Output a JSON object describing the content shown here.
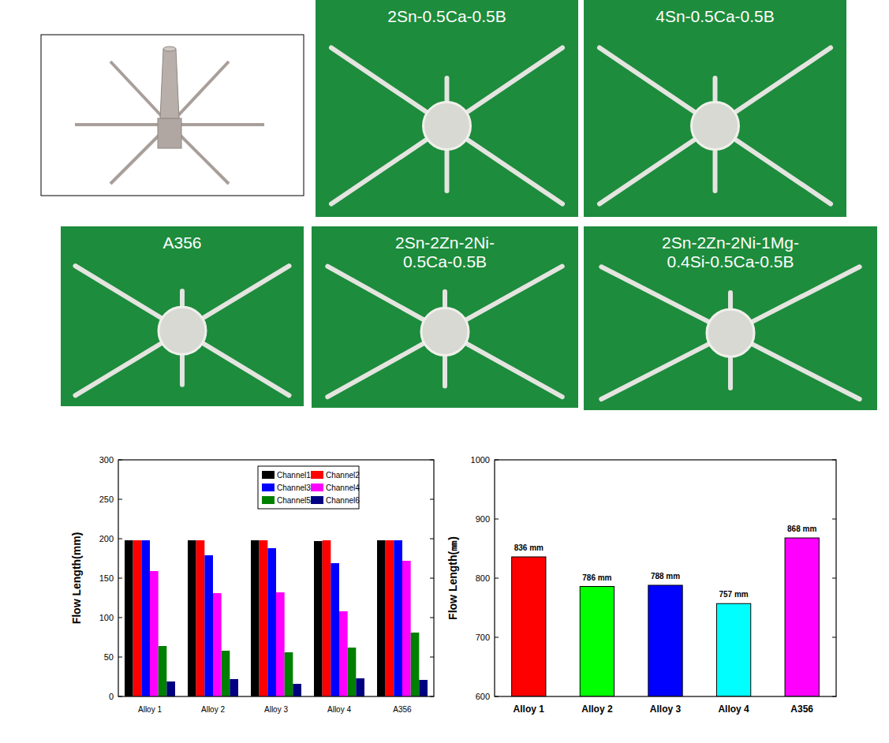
{
  "panels": [
    {
      "label_lines": [
        "2Sn-0.5Ca-0.5B"
      ]
    },
    {
      "label_lines": [
        "4Sn-0.5Ca-0.5B"
      ]
    },
    {
      "label_lines": [
        "A356"
      ]
    },
    {
      "label_lines": [
        "2Sn-2Zn-2Ni-",
        "0.5Ca-0.5B"
      ]
    },
    {
      "label_lines": [
        "2Sn-2Zn-2Ni-1Mg-",
        "0.4Si-0.5Ca-0.5B"
      ]
    }
  ],
  "chart_data": [
    {
      "type": "bar",
      "ylabel": "Flow Length(mm)",
      "categories": [
        "Alloy 1",
        "Alloy 2",
        "Alloy 3",
        "Alloy 4",
        "A356"
      ],
      "series": [
        {
          "name": "Channel1",
          "color": "#000000",
          "values": [
            198,
            198,
            198,
            197,
            198
          ]
        },
        {
          "name": "Channel2",
          "color": "#ff0000",
          "values": [
            198,
            198,
            198,
            198,
            198
          ]
        },
        {
          "name": "Channel3",
          "color": "#0000ff",
          "values": [
            198,
            179,
            188,
            169,
            198
          ]
        },
        {
          "name": "Channel4",
          "color": "#ff00ff",
          "values": [
            159,
            131,
            132,
            108,
            172
          ]
        },
        {
          "name": "Channel5",
          "color": "#008000",
          "values": [
            64,
            58,
            56,
            62,
            81
          ]
        },
        {
          "name": "Channel6",
          "color": "#000080",
          "values": [
            19,
            22,
            16,
            23,
            21
          ]
        }
      ],
      "ylim": [
        0,
        300
      ],
      "yticks": [
        0,
        50,
        100,
        150,
        200,
        250,
        300
      ],
      "grid": false,
      "legend": "upper right"
    },
    {
      "type": "bar",
      "ylabel": "Flow Length(㎜)",
      "categories": [
        "Alloy 1",
        "Alloy 2",
        "Alloy 3",
        "Alloy 4",
        "A356"
      ],
      "values": [
        836,
        786,
        788,
        757,
        868
      ],
      "value_labels": [
        "836 mm",
        "786 mm",
        "788 mm",
        "757 mm",
        "868 mm"
      ],
      "colors": [
        "#ff0000",
        "#00ff00",
        "#0000ff",
        "#00ffff",
        "#ff00ff"
      ],
      "ylim": [
        600,
        1000
      ],
      "yticks": [
        600,
        700,
        800,
        900,
        1000
      ],
      "grid": false,
      "data_labels": true
    }
  ]
}
